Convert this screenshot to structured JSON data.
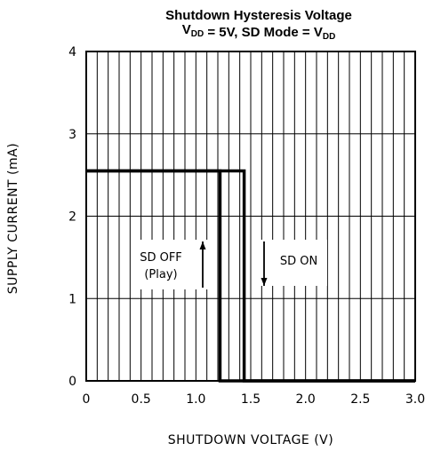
{
  "chart_data": {
    "type": "line",
    "title": "Shutdown Hysteresis Voltage",
    "subtitle": {
      "parts": [
        {
          "text": "V",
          "sub": false
        },
        {
          "text": "DD",
          "sub": true
        },
        {
          "text": " = 5V, SD Mode = V",
          "sub": false
        },
        {
          "text": "DD",
          "sub": true
        }
      ]
    },
    "xlabel": "SHUTDOWN VOLTAGE (V)",
    "ylabel": "SUPPLY CURRENT (mA)",
    "xlim": [
      0,
      3.0
    ],
    "ylim": [
      0,
      4
    ],
    "x_ticks": [
      "0",
      "0.5",
      "1.0",
      "1.5",
      "2.0",
      "2.5",
      "3.0"
    ],
    "x_tick_values": [
      0,
      0.5,
      1.0,
      1.5,
      2.0,
      2.5,
      3.0
    ],
    "y_ticks": [
      "0",
      "1",
      "2",
      "3",
      "4"
    ],
    "y_tick_values": [
      0,
      1,
      2,
      3,
      4
    ],
    "x_minor_step": 0.1,
    "grid": true,
    "series": [
      {
        "x": [
          0,
          1.22,
          1.22,
          3.0
        ],
        "y": [
          2.55,
          2.55,
          0,
          0
        ]
      },
      {
        "x": [
          0,
          1.44,
          1.44,
          3.0
        ],
        "y": [
          2.55,
          2.55,
          0,
          0
        ]
      }
    ],
    "annotations": [
      {
        "lines": [
          "SD OFF",
          "(Play)"
        ],
        "arrow": "up"
      },
      {
        "lines": [
          "SD ON"
        ],
        "arrow": "down"
      }
    ]
  }
}
